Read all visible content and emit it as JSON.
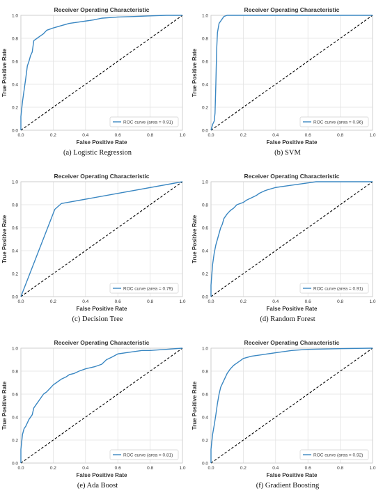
{
  "colors": {
    "roc": "#3a87c2",
    "chance": "#000000",
    "grid": "#e3e3e3",
    "frame": "#c8c8c8"
  },
  "chart_data": [
    {
      "type": "line",
      "title": "Receiver Operating Characteristic",
      "xlabel": "False Positive Rate",
      "ylabel": "True Positive Rate",
      "caption": "(a) Logistic Regression",
      "xlim": [
        0,
        1
      ],
      "ylim": [
        0,
        1
      ],
      "xticks": [
        "0.0",
        "0.2",
        "0.4",
        "0.6",
        "0.8",
        "1.0"
      ],
      "yticks": [
        "0.0",
        "0.2",
        "0.4",
        "0.6",
        "0.8",
        "1.0"
      ],
      "grid": true,
      "legend_position": "bottom-right",
      "series": [
        {
          "name": "ROC curve (area = 0.91)",
          "x": [
            0,
            0,
            0.01,
            0.02,
            0.03,
            0.04,
            0.05,
            0.06,
            0.07,
            0.08,
            0.1,
            0.12,
            0.14,
            0.16,
            0.18,
            0.2,
            0.25,
            0.3,
            0.35,
            0.4,
            0.45,
            0.5,
            0.6,
            0.7,
            0.8,
            0.9,
            1.0
          ],
          "y": [
            0,
            0.12,
            0.25,
            0.35,
            0.45,
            0.56,
            0.6,
            0.65,
            0.68,
            0.78,
            0.8,
            0.82,
            0.84,
            0.87,
            0.88,
            0.89,
            0.91,
            0.93,
            0.94,
            0.95,
            0.96,
            0.975,
            0.985,
            0.99,
            0.995,
            1.0,
            1.0
          ]
        },
        {
          "name": "",
          "x": [
            0,
            1
          ],
          "y": [
            0,
            1
          ]
        }
      ]
    },
    {
      "type": "line",
      "title": "Receiver Operating Characteristic",
      "xlabel": "False Positive Rate",
      "ylabel": "True Positive Rate",
      "caption": "(b) SVM",
      "xlim": [
        0,
        1
      ],
      "ylim": [
        0,
        1
      ],
      "xticks": [
        "0.0",
        "0.2",
        "0.4",
        "0.6",
        "0.8",
        "1.0"
      ],
      "yticks": [
        "0.0",
        "0.2",
        "0.4",
        "0.6",
        "0.8",
        "1.0"
      ],
      "grid": true,
      "legend_position": "bottom-right",
      "series": [
        {
          "name": "ROC curve (area = 0.96)",
          "x": [
            0,
            0.01,
            0.02,
            0.025,
            0.03,
            0.035,
            0.04,
            0.05,
            0.06,
            0.07,
            0.08,
            0.1,
            0.15,
            0.2,
            0.4,
            0.6,
            0.8,
            1.0
          ],
          "y": [
            0,
            0.05,
            0.08,
            0.15,
            0.4,
            0.7,
            0.85,
            0.93,
            0.95,
            0.97,
            0.99,
            1.0,
            1.0,
            1.0,
            1.0,
            1.0,
            1.0,
            1.0
          ]
        },
        {
          "name": "",
          "x": [
            0,
            1
          ],
          "y": [
            0,
            1
          ]
        }
      ]
    },
    {
      "type": "line",
      "title": "Receiver Operating Characteristic",
      "xlabel": "False Positive Rate",
      "ylabel": "True Positive Rate",
      "caption": "(c) Decision Tree",
      "xlim": [
        0,
        1
      ],
      "ylim": [
        0,
        1
      ],
      "xticks": [
        "0.0",
        "0.2",
        "0.4",
        "0.6",
        "0.8",
        "1.0"
      ],
      "yticks": [
        "0.0",
        "0.2",
        "0.4",
        "0.6",
        "0.8",
        "1.0"
      ],
      "grid": true,
      "legend_position": "bottom-right",
      "series": [
        {
          "name": "ROC curve (area = 0.79)",
          "x": [
            0,
            0.21,
            0.25,
            1.0
          ],
          "y": [
            0,
            0.76,
            0.81,
            1.0
          ]
        },
        {
          "name": "",
          "x": [
            0,
            1
          ],
          "y": [
            0,
            1
          ]
        }
      ]
    },
    {
      "type": "line",
      "title": "Receiver Operating Characteristic",
      "xlabel": "False Positive Rate",
      "ylabel": "True Positive Rate",
      "caption": "(d) Random Forest",
      "xlim": [
        0,
        1
      ],
      "ylim": [
        0,
        1
      ],
      "xticks": [
        "0.0",
        "0.2",
        "0.4",
        "0.6",
        "0.8",
        "1.0"
      ],
      "yticks": [
        "0.0",
        "0.2",
        "0.4",
        "0.6",
        "0.8",
        "1.0"
      ],
      "grid": true,
      "legend_position": "bottom-right",
      "series": [
        {
          "name": "ROC curve (area = 0.91)",
          "x": [
            0,
            0,
            0.01,
            0.02,
            0.03,
            0.04,
            0.05,
            0.06,
            0.07,
            0.08,
            0.1,
            0.12,
            0.14,
            0.16,
            0.18,
            0.2,
            0.22,
            0.25,
            0.28,
            0.3,
            0.33,
            0.35,
            0.4,
            0.45,
            0.5,
            0.55,
            0.6,
            0.65,
            0.7,
            0.8,
            0.9,
            1.0
          ],
          "y": [
            0,
            0.1,
            0.28,
            0.38,
            0.45,
            0.5,
            0.55,
            0.6,
            0.63,
            0.68,
            0.72,
            0.75,
            0.77,
            0.8,
            0.81,
            0.82,
            0.84,
            0.86,
            0.88,
            0.9,
            0.92,
            0.93,
            0.95,
            0.96,
            0.97,
            0.98,
            0.99,
            1.0,
            1.0,
            1.0,
            1.0,
            1.0
          ]
        },
        {
          "name": "",
          "x": [
            0,
            1
          ],
          "y": [
            0,
            1
          ]
        }
      ]
    },
    {
      "type": "line",
      "title": "Receiver Operating Characteristic",
      "xlabel": "False Positive Rate",
      "ylabel": "True Positive Rate",
      "caption": "(e) Ada Boost",
      "xlim": [
        0,
        1
      ],
      "ylim": [
        0,
        1
      ],
      "xticks": [
        "0.0",
        "0.2",
        "0.4",
        "0.6",
        "0.8",
        "1.0"
      ],
      "yticks": [
        "0.0",
        "0.2",
        "0.4",
        "0.6",
        "0.8",
        "1.0"
      ],
      "grid": true,
      "legend_position": "bottom-right",
      "series": [
        {
          "name": "ROC curve (area = 0.81)",
          "x": [
            0,
            0,
            0.01,
            0.02,
            0.03,
            0.05,
            0.07,
            0.08,
            0.1,
            0.12,
            0.14,
            0.16,
            0.18,
            0.2,
            0.22,
            0.25,
            0.28,
            0.3,
            0.33,
            0.36,
            0.4,
            0.43,
            0.46,
            0.5,
            0.53,
            0.56,
            0.6,
            0.65,
            0.7,
            0.75,
            0.8,
            0.9,
            1.0
          ],
          "y": [
            0,
            0.12,
            0.25,
            0.3,
            0.32,
            0.38,
            0.42,
            0.48,
            0.52,
            0.56,
            0.6,
            0.62,
            0.65,
            0.68,
            0.7,
            0.73,
            0.75,
            0.77,
            0.78,
            0.8,
            0.82,
            0.83,
            0.84,
            0.86,
            0.9,
            0.92,
            0.95,
            0.96,
            0.97,
            0.98,
            0.98,
            0.99,
            1.0
          ]
        },
        {
          "name": "",
          "x": [
            0,
            1
          ],
          "y": [
            0,
            1
          ]
        }
      ]
    },
    {
      "type": "line",
      "title": "Receiver Operating Characteristic",
      "xlabel": "False Positive Rate",
      "ylabel": "True Positive Rate",
      "caption": "(f) Gradient Boosting",
      "xlim": [
        0,
        1
      ],
      "ylim": [
        0,
        1
      ],
      "xticks": [
        "0.0",
        "0.2",
        "0.4",
        "0.6",
        "0.8",
        "1.0"
      ],
      "yticks": [
        "0.0",
        "0.2",
        "0.4",
        "0.6",
        "0.8",
        "1.0"
      ],
      "grid": true,
      "legend_position": "bottom-right",
      "series": [
        {
          "name": "ROC curve (area = 0.92)",
          "x": [
            0,
            0,
            0.01,
            0.02,
            0.03,
            0.04,
            0.05,
            0.06,
            0.08,
            0.1,
            0.12,
            0.14,
            0.16,
            0.18,
            0.2,
            0.25,
            0.3,
            0.35,
            0.4,
            0.45,
            0.5,
            0.6,
            0.7,
            0.8,
            0.9,
            1.0
          ],
          "y": [
            0,
            0.12,
            0.25,
            0.33,
            0.42,
            0.52,
            0.6,
            0.66,
            0.72,
            0.78,
            0.82,
            0.85,
            0.87,
            0.89,
            0.91,
            0.93,
            0.94,
            0.95,
            0.96,
            0.97,
            0.98,
            0.99,
            0.993,
            0.996,
            0.998,
            1.0
          ]
        },
        {
          "name": "",
          "x": [
            0,
            1
          ],
          "y": [
            0,
            1
          ]
        }
      ]
    }
  ]
}
